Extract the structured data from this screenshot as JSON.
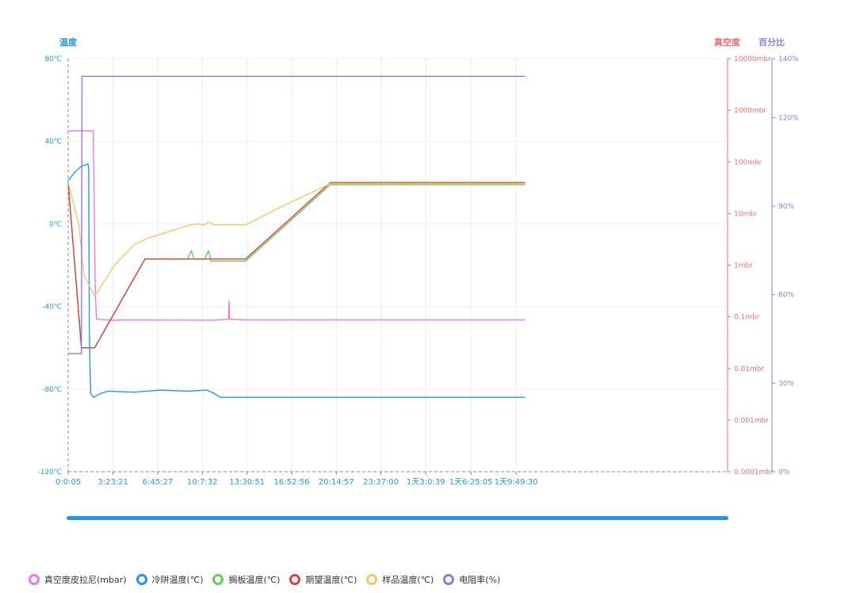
{
  "chart_data": {
    "type": "line",
    "axes": {
      "left": {
        "title": "温度",
        "min": -120,
        "max": 80,
        "ticks": [
          80,
          40,
          0,
          -40,
          -80,
          -120
        ],
        "tick_labels": [
          "80℃",
          "40℃",
          "0℃",
          "-40℃",
          "-80℃",
          "-120℃"
        ],
        "color": "#2196f3"
      },
      "right_vacuum": {
        "title": "真空度",
        "scale": "log10",
        "min_exp": -4,
        "max_exp": 4,
        "tick_labels": [
          "10000mbr",
          "1000mbr",
          "100mbr",
          "10mbr",
          "1mbr",
          "0.1mbr",
          "0.01mbr",
          "0.001mbr",
          "0.0001mbr"
        ],
        "color": "#f26d6d"
      },
      "right_percent": {
        "title": "百分比",
        "min": 0,
        "max": 140,
        "ticks": [
          140,
          120,
          90,
          60,
          30,
          0
        ],
        "tick_labels": [
          "140%",
          "120%",
          "90%",
          "60%",
          "30%",
          "0%"
        ],
        "color": "#8a7cf0"
      }
    },
    "x": {
      "unit": "hours",
      "min": 0,
      "max": 49.8,
      "ticks": [
        0.001,
        3.39,
        6.76,
        10.13,
        13.51,
        16.88,
        20.25,
        23.62,
        27.01,
        30.42,
        33.83
      ],
      "tick_labels": [
        "0:0:05",
        "3:23:21",
        "6:45:27",
        "10:7:32",
        "13:30:51",
        "16:52:56",
        "20:14:57",
        "23:37:00",
        "1天3:0:39",
        "1天6:25:05",
        "1天9:49:30"
      ]
    },
    "series": [
      {
        "name": "真空度皮拉尼(mbar)",
        "axis": "right_vacuum",
        "color": "#e97be6",
        "points": [
          [
            0,
            400
          ],
          [
            1.9,
            400
          ],
          [
            2.05,
            0.3
          ],
          [
            2.15,
            0.09
          ],
          [
            3.5,
            0.085
          ],
          [
            4,
            0.087
          ],
          [
            11,
            0.086
          ],
          [
            12.1,
            0.09
          ],
          [
            12.15,
            0.2
          ],
          [
            12.2,
            0.09
          ],
          [
            13.3,
            0.087
          ],
          [
            20,
            0.087
          ],
          [
            34.5,
            0.087
          ]
        ]
      },
      {
        "name": "冷阱温度(℃)",
        "axis": "left",
        "color": "#2196f3",
        "points": [
          [
            0,
            21
          ],
          [
            0.5,
            25
          ],
          [
            1,
            28
          ],
          [
            1.5,
            29
          ],
          [
            1.55,
            27
          ],
          [
            1.6,
            -50
          ],
          [
            1.65,
            -70
          ],
          [
            1.7,
            -82
          ],
          [
            1.9,
            -84
          ],
          [
            2.5,
            -82
          ],
          [
            3,
            -81
          ],
          [
            5,
            -81.5
          ],
          [
            7,
            -80.5
          ],
          [
            9,
            -81
          ],
          [
            10.5,
            -80.5
          ],
          [
            11,
            -82
          ],
          [
            11.5,
            -84
          ],
          [
            13,
            -84
          ],
          [
            20,
            -84
          ],
          [
            34.5,
            -84
          ]
        ]
      },
      {
        "name": "搁板温度(℃)",
        "axis": "left",
        "color": "#5cd15c",
        "points": [
          [
            0,
            20
          ],
          [
            1,
            -60
          ],
          [
            2,
            -60
          ],
          [
            5.8,
            -17
          ],
          [
            9,
            -17
          ],
          [
            9.3,
            -13
          ],
          [
            9.5,
            -17
          ],
          [
            10.3,
            -17
          ],
          [
            10.6,
            -13
          ],
          [
            10.8,
            -18
          ],
          [
            13.4,
            -18
          ],
          [
            19.8,
            19
          ],
          [
            34.5,
            19
          ]
        ]
      },
      {
        "name": "期望温度(℃)",
        "axis": "left",
        "color": "#e43c3c",
        "points": [
          [
            0,
            20
          ],
          [
            1,
            -60
          ],
          [
            2,
            -60
          ],
          [
            5.8,
            -17
          ],
          [
            13.4,
            -17
          ],
          [
            19.8,
            20
          ],
          [
            34.5,
            20
          ]
        ]
      },
      {
        "name": "样品温度(℃)",
        "axis": "left",
        "color": "#f8c66a",
        "points": [
          [
            0,
            20
          ],
          [
            0.8,
            0
          ],
          [
            1.2,
            -25
          ],
          [
            2,
            -35
          ],
          [
            3.5,
            -20
          ],
          [
            5,
            -10
          ],
          [
            6,
            -7
          ],
          [
            8,
            -3
          ],
          [
            9.2,
            -0.5
          ],
          [
            9.8,
            0
          ],
          [
            10.3,
            -0.5
          ],
          [
            10.6,
            1
          ],
          [
            11,
            -0.5
          ],
          [
            13.4,
            -0.5
          ],
          [
            16,
            8
          ],
          [
            19.8,
            19.5
          ],
          [
            34.5,
            19.5
          ]
        ]
      },
      {
        "name": "电阻率(%)",
        "axis": "right_percent",
        "color": "#8a7cf0",
        "points": [
          [
            0,
            40
          ],
          [
            1,
            40
          ],
          [
            1.05,
            134
          ],
          [
            34.5,
            134
          ]
        ]
      }
    ],
    "legend_position": "bottom-left"
  }
}
